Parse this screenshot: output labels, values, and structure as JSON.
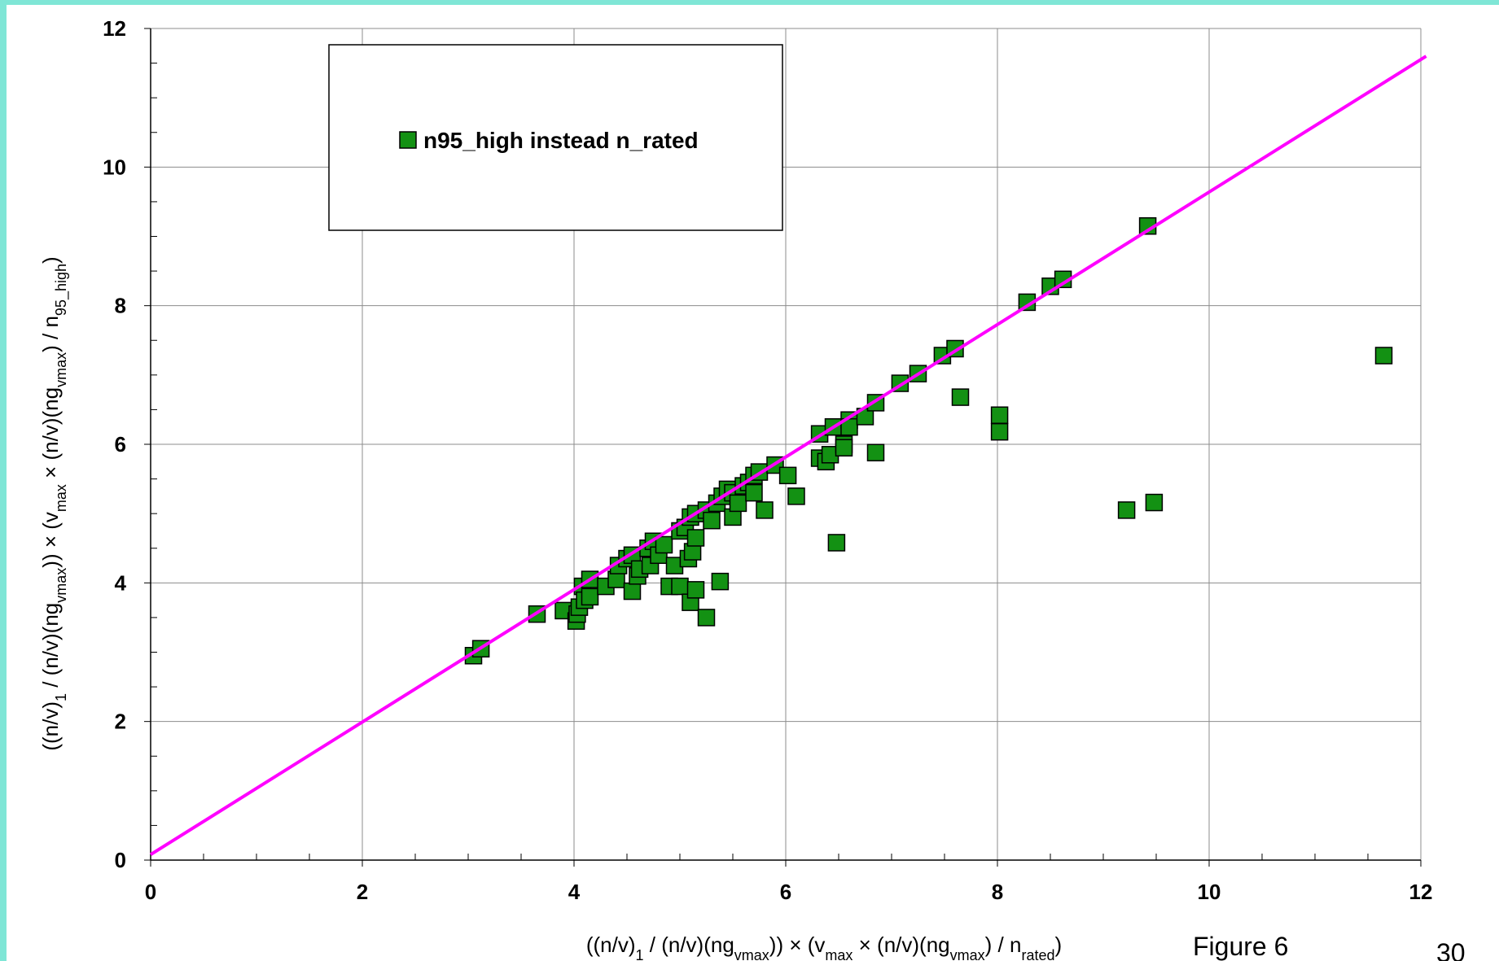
{
  "chart_data": {
    "type": "scatter",
    "xlim": [
      0,
      12
    ],
    "ylim": [
      0,
      12
    ],
    "x_ticks": [
      "0",
      "2",
      "4",
      "6",
      "8",
      "10",
      "12"
    ],
    "y_ticks": [
      "0",
      "2",
      "4",
      "6",
      "8",
      "10",
      "12"
    ],
    "grid": true,
    "legend_position": "top-left",
    "xlabel": {
      "p1": "((n/v)",
      "s1": "1",
      "p2": " / (n/v)(ng",
      "s2": "vmax",
      "p3": ")) × (v",
      "s3": "max",
      "p4": " × (n/v)(ng",
      "s4": "vmax",
      "p5": ") / n",
      "s5": "rated",
      "p6": ")"
    },
    "ylabel": {
      "p1": "((n/v)",
      "s1": "1",
      "p2": " / (n/v)(ng",
      "s2": "vmax",
      "p3": ")) × (v",
      "s3": "max",
      "p4": " × (n/v)(ng",
      "s4": "vmax",
      "p5": ") / n",
      "s5": "95_high",
      "p6": ")"
    },
    "series": [
      {
        "name": "n95_high instead n_rated",
        "color": "#139113",
        "marker": "square",
        "points": [
          [
            3.05,
            2.95
          ],
          [
            3.12,
            3.05
          ],
          [
            3.65,
            3.55
          ],
          [
            3.9,
            3.6
          ],
          [
            4.02,
            3.45
          ],
          [
            4.03,
            3.55
          ],
          [
            4.05,
            3.65
          ],
          [
            4.08,
            3.95
          ],
          [
            4.1,
            3.75
          ],
          [
            4.15,
            4.05
          ],
          [
            4.15,
            3.8
          ],
          [
            4.3,
            3.95
          ],
          [
            4.4,
            4.05
          ],
          [
            4.42,
            4.25
          ],
          [
            4.5,
            4.35
          ],
          [
            4.55,
            4.4
          ],
          [
            4.55,
            3.88
          ],
          [
            4.6,
            4.1
          ],
          [
            4.62,
            4.2
          ],
          [
            4.7,
            4.5
          ],
          [
            4.72,
            4.25
          ],
          [
            4.75,
            4.6
          ],
          [
            4.8,
            4.4
          ],
          [
            4.85,
            4.55
          ],
          [
            4.9,
            3.95
          ],
          [
            4.95,
            4.25
          ],
          [
            5.0,
            3.95
          ],
          [
            5.0,
            4.75
          ],
          [
            5.05,
            4.8
          ],
          [
            5.08,
            4.35
          ],
          [
            5.1,
            3.72
          ],
          [
            5.1,
            4.95
          ],
          [
            5.12,
            4.45
          ],
          [
            5.15,
            5.0
          ],
          [
            5.15,
            3.9
          ],
          [
            5.15,
            4.65
          ],
          [
            5.25,
            3.5
          ],
          [
            5.25,
            5.05
          ],
          [
            5.3,
            4.9
          ],
          [
            5.35,
            5.15
          ],
          [
            5.38,
            4.02
          ],
          [
            5.4,
            5.25
          ],
          [
            5.45,
            5.35
          ],
          [
            5.5,
            4.95
          ],
          [
            5.5,
            5.3
          ],
          [
            5.55,
            5.15
          ],
          [
            5.6,
            5.4
          ],
          [
            5.65,
            5.45
          ],
          [
            5.7,
            5.55
          ],
          [
            5.7,
            5.3
          ],
          [
            5.75,
            5.6
          ],
          [
            5.8,
            5.05
          ],
          [
            5.9,
            5.7
          ],
          [
            6.02,
            5.55
          ],
          [
            6.1,
            5.25
          ],
          [
            6.32,
            6.15
          ],
          [
            6.32,
            5.8
          ],
          [
            6.38,
            5.75
          ],
          [
            6.42,
            5.85
          ],
          [
            6.45,
            6.25
          ],
          [
            6.48,
            4.58
          ],
          [
            6.55,
            6.0
          ],
          [
            6.6,
            6.35
          ],
          [
            6.6,
            6.25
          ],
          [
            6.55,
            5.95
          ],
          [
            6.75,
            6.4
          ],
          [
            6.85,
            5.88
          ],
          [
            6.85,
            6.6
          ],
          [
            7.08,
            6.88
          ],
          [
            7.25,
            7.02
          ],
          [
            7.48,
            7.28
          ],
          [
            7.6,
            7.38
          ],
          [
            7.65,
            6.68
          ],
          [
            8.02,
            6.42
          ],
          [
            8.02,
            6.18
          ],
          [
            8.28,
            8.05
          ],
          [
            8.5,
            8.28
          ],
          [
            8.62,
            8.38
          ],
          [
            9.22,
            5.05
          ],
          [
            9.48,
            5.16
          ],
          [
            9.42,
            9.15
          ],
          [
            11.65,
            7.28
          ]
        ]
      }
    ],
    "fit_line": {
      "color": "#ff00ff",
      "x": [
        0,
        12.05
      ],
      "y": [
        0.08,
        11.6
      ]
    }
  },
  "annotations": {
    "figure_label": "Figure 6",
    "page_number": "30"
  }
}
